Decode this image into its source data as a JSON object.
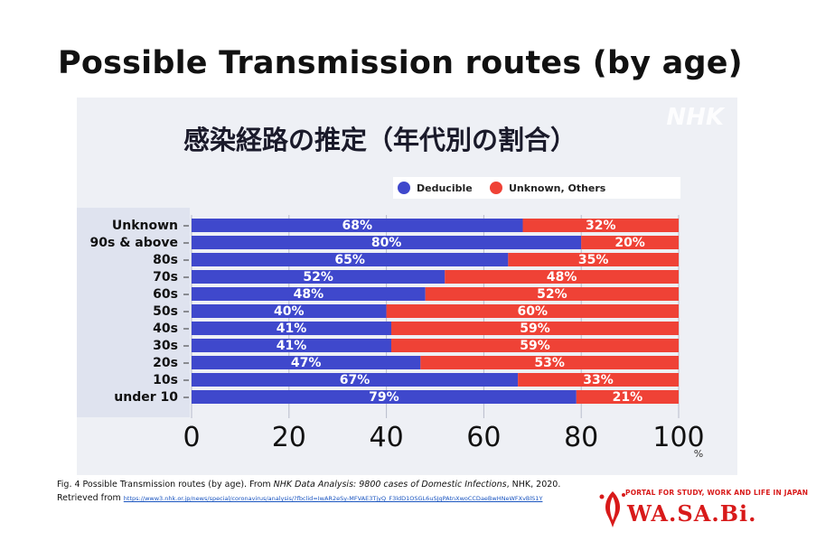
{
  "slide": {
    "title": "Possible Transmission routes (by age)"
  },
  "chart_data": {
    "type": "bar",
    "orientation": "horizontal",
    "stacked": true,
    "title": "感染経路の推定（年代別の割合）",
    "watermark": "NHK",
    "categories": [
      "Unknown",
      "90s & above",
      "80s",
      "70s",
      "60s",
      "50s",
      "40s",
      "30s",
      "20s",
      "10s",
      "under 10"
    ],
    "series": [
      {
        "name": "Deducible",
        "color": "#3f48cc",
        "values": [
          68,
          80,
          65,
          52,
          48,
          40,
          41,
          41,
          47,
          67,
          79
        ]
      },
      {
        "name": "Unknown, Others",
        "color": "#ef4236",
        "values": [
          32,
          20,
          35,
          48,
          52,
          60,
          59,
          59,
          53,
          33,
          21
        ]
      }
    ],
    "data_labels_suffix": "%",
    "xlim": [
      0,
      100
    ],
    "xticks": [
      "0",
      "20",
      "40",
      "60",
      "80",
      "100"
    ],
    "xunit": "%",
    "legend_position": "top-right",
    "grid": true
  },
  "caption": {
    "prefix": "Fig. 4 Possible Transmission routes (by age). From ",
    "source_title": "NHK Data Analysis: 9800 cases of Domestic Infections",
    "suffix": ", NHK, 2020.",
    "retrieved_label": "Retrieved from",
    "url": "https://www3.nhk.or.jp/news/special/coronavirus/analysis/?fbclid=IwAR2eSy-MFVAE3TjyQ_F3ldD1OSGL6uSJgPAtnXwoCCDaeBwHNeWFXvBlS1Y"
  },
  "logo": {
    "tagline": "PORTAL FOR STUDY, WORK AND LIFE IN JAPAN",
    "name": "WA.SA.Bi."
  }
}
